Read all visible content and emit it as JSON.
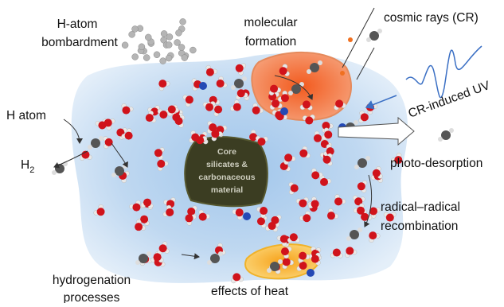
{
  "labels": {
    "h_atom_bombardment": [
      "H-atom",
      "bombardment"
    ],
    "molecular_formation": [
      "molecular",
      "formation"
    ],
    "cosmic_rays": "cosmic rays (CR)",
    "cr_induced_uv": "CR-induced UV",
    "h_atom": "H atom",
    "h2": {
      "text": "H",
      "subscript": "2"
    },
    "core": [
      "Core",
      "silicates &",
      "carbonaceous",
      "material"
    ],
    "photo_desorption": "photo-desorption",
    "radical_recombination": [
      "radical–radical",
      "recombination"
    ],
    "hydrogenation": [
      "hydrogenation",
      "processes"
    ],
    "effects_of_heat": "effects of heat"
  }
}
